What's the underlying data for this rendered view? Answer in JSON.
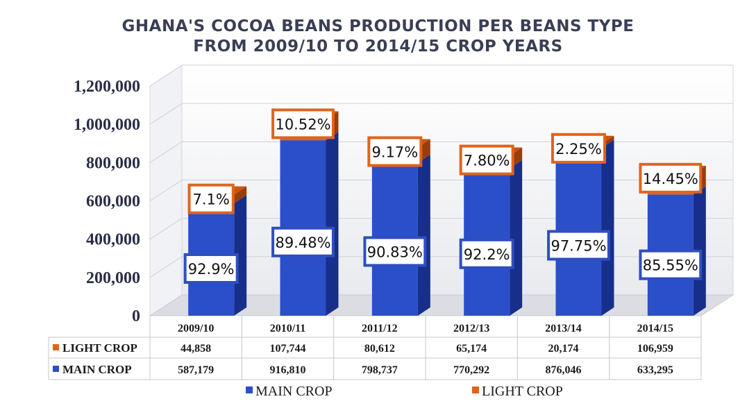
{
  "chart_data": {
    "type": "bar",
    "title": [
      "GHANA'S COCOA BEANS PRODUCTION PER BEANS TYPE",
      "FROM 2009/10 TO 2014/15 CROP YEARS"
    ],
    "stacked": true,
    "three_d": true,
    "categories": [
      "2009/10",
      "2010/11",
      "2011/12",
      "2012/13",
      "2013/14",
      "2014/15"
    ],
    "series": [
      {
        "name": "MAIN CROP",
        "color": "#2a4fc9",
        "values": [
          587179,
          916810,
          798737,
          770292,
          876046,
          633295
        ],
        "value_labels": [
          "587,179",
          "916,810",
          "798,737",
          "770,292",
          "876,046",
          "633,295"
        ],
        "percent_labels": [
          "92.9%",
          "89.48%",
          "90.83%",
          "92.2%",
          "97.75%",
          "85.55%"
        ]
      },
      {
        "name": "LIGHT CROP",
        "color": "#e0641c",
        "values": [
          44858,
          107744,
          80612,
          65174,
          20174,
          106959
        ],
        "value_labels": [
          "44,858",
          "107,744",
          "80,612",
          "65,174",
          "20,174",
          "106,959"
        ],
        "percent_labels": [
          "7.1%",
          "10.52%",
          "9.17%",
          "7.80%",
          "2.25%",
          "14.45%"
        ]
      }
    ],
    "ylim": [
      0,
      1200000
    ],
    "y_ticks": [
      "0",
      "200,000",
      "400,000",
      "600,000",
      "800,000",
      "1,000,000",
      "1,200,000"
    ],
    "y_tick_values": [
      0,
      200000,
      400000,
      600000,
      800000,
      1000000,
      1200000
    ],
    "grid": true,
    "data_table": true,
    "legend": "bottom"
  }
}
